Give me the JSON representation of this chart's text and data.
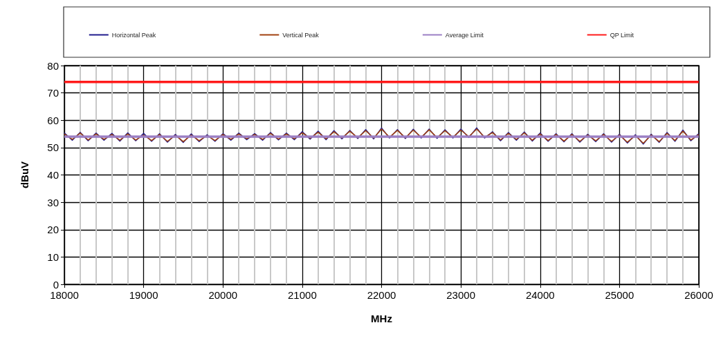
{
  "chart_data": {
    "type": "line",
    "xlabel": "MHz",
    "ylabel": "dBuV",
    "xlim": [
      18000,
      26000
    ],
    "xticks": [
      18000,
      19000,
      20000,
      21000,
      22000,
      23000,
      24000,
      25000,
      26000
    ],
    "ylim": [
      0,
      80
    ],
    "yticks": [
      0,
      10,
      20,
      30,
      40,
      50,
      60,
      70,
      80
    ],
    "grid": true,
    "legend": "top",
    "marker": "none",
    "line_style": "solid",
    "x": [
      18000,
      18100,
      18200,
      18300,
      18400,
      18500,
      18600,
      18700,
      18800,
      18900,
      19000,
      19100,
      19200,
      19300,
      19400,
      19500,
      19600,
      19700,
      19800,
      19900,
      20000,
      20100,
      20200,
      20300,
      20400,
      20500,
      20600,
      20700,
      20800,
      20900,
      21000,
      21100,
      21200,
      21300,
      21400,
      21500,
      21600,
      21700,
      21800,
      21900,
      22000,
      22100,
      22200,
      22300,
      22400,
      22500,
      22600,
      22700,
      22800,
      22900,
      23000,
      23100,
      23200,
      23300,
      23400,
      23500,
      23600,
      23700,
      23800,
      23900,
      24000,
      24100,
      24200,
      24300,
      24400,
      24500,
      24600,
      24700,
      24800,
      24900,
      25000,
      25100,
      25200,
      25300,
      25400,
      25500,
      25600,
      25700,
      25800,
      25900,
      26000
    ],
    "series": [
      {
        "name": "Horizontal Peak",
        "color": "#1f1a8c",
        "values": [
          55.4,
          52.7,
          55.6,
          52.5,
          55.3,
          52.7,
          55.2,
          52.4,
          55.4,
          52.5,
          55.2,
          52.3,
          55.1,
          52.0,
          54.8,
          51.9,
          55.0,
          52.2,
          54.7,
          52.3,
          55.1,
          52.7,
          55.3,
          52.9,
          55.1,
          52.7,
          55.5,
          52.8,
          55.3,
          52.9,
          55.8,
          53.1,
          56.0,
          52.9,
          56.2,
          53.2,
          56.3,
          53.3,
          56.6,
          53.2,
          57.2,
          53.5,
          56.6,
          53.3,
          56.7,
          53.5,
          56.8,
          53.4,
          56.5,
          53.5,
          56.8,
          53.7,
          57.2,
          53.5,
          55.8,
          52.5,
          55.5,
          52.7,
          55.7,
          52.4,
          55.3,
          52.3,
          55.1,
          52.1,
          55.1,
          52.0,
          54.9,
          52.2,
          55.1,
          52.0,
          54.9,
          51.7,
          54.7,
          51.3,
          54.9,
          51.9,
          55.5,
          52.3,
          56.4,
          52.5,
          55.1
        ]
      },
      {
        "name": "Vertical Peak",
        "color": "#a0400f",
        "values": [
          55,
          53,
          55.3,
          52.8,
          55,
          53,
          54.8,
          52.7,
          55,
          52.8,
          54.6,
          52.6,
          54.8,
          52.3,
          54.5,
          52.2,
          54.6,
          52.5,
          54.4,
          52.6,
          54.8,
          53,
          55,
          53.2,
          54.8,
          53,
          55.2,
          53.1,
          55,
          53.2,
          55.4,
          53.4,
          55.6,
          53.2,
          55.8,
          53.5,
          56,
          53.6,
          56.2,
          53.5,
          56.8,
          53.8,
          56.3,
          53.6,
          56.4,
          53.8,
          56.5,
          53.7,
          56.2,
          53.8,
          56.4,
          54,
          56.8,
          53.8,
          55.5,
          52.8,
          55.2,
          53,
          55.4,
          52.7,
          55,
          52.6,
          54.8,
          52.4,
          54.8,
          52.3,
          54.6,
          52.5,
          54.8,
          52.3,
          54.6,
          52,
          54.4,
          51.6,
          54.6,
          52.2,
          55.2,
          52.6,
          56,
          52.8,
          54.8
        ]
      },
      {
        "name": "Average Limit",
        "color": "#9b7fc4",
        "values": [
          54,
          54,
          54,
          54,
          54,
          54,
          54,
          54,
          54,
          54,
          54,
          54,
          54,
          54,
          54,
          54,
          54,
          54,
          54,
          54,
          54,
          54,
          54,
          54,
          54,
          54,
          54,
          54,
          54,
          54,
          54,
          54,
          54,
          54,
          54,
          54,
          54,
          54,
          54,
          54,
          54,
          54,
          54,
          54,
          54,
          54,
          54,
          54,
          54,
          54,
          54,
          54,
          54,
          54,
          54,
          54,
          54,
          54,
          54,
          54,
          54,
          54,
          54,
          54,
          54,
          54,
          54,
          54,
          54,
          54,
          54,
          54,
          54,
          54,
          54,
          54,
          54,
          54,
          54,
          54,
          54
        ]
      },
      {
        "name": "QP Limit",
        "color": "#ff1a1a",
        "values": [
          74,
          74,
          74,
          74,
          74,
          74,
          74,
          74,
          74,
          74,
          74,
          74,
          74,
          74,
          74,
          74,
          74,
          74,
          74,
          74,
          74,
          74,
          74,
          74,
          74,
          74,
          74,
          74,
          74,
          74,
          74,
          74,
          74,
          74,
          74,
          74,
          74,
          74,
          74,
          74,
          74,
          74,
          74,
          74,
          74,
          74,
          74,
          74,
          74,
          74,
          74,
          74,
          74,
          74,
          74,
          74,
          74,
          74,
          74,
          74,
          74,
          74,
          74,
          74,
          74,
          74,
          74,
          74,
          74,
          74,
          74,
          74,
          74,
          74,
          74,
          74,
          74,
          74,
          74,
          74,
          74
        ]
      }
    ]
  }
}
